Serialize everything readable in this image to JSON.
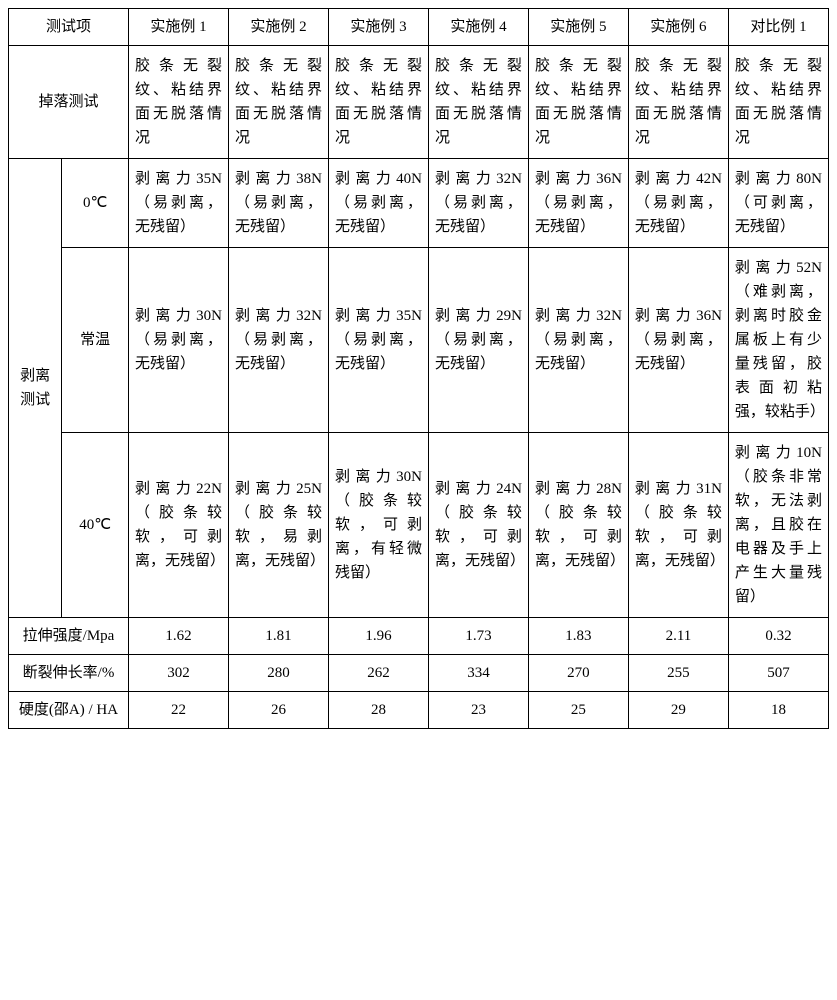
{
  "header": {
    "c0": "测试项",
    "c1": "实施例 1",
    "c2": "实施例 2",
    "c3": "实施例 3",
    "c4": "实施例 4",
    "c5": "实施例 5",
    "c6": "实施例 6",
    "c7": "对比例 1"
  },
  "drop": {
    "label": "掉落测试",
    "c1": "胶条无裂纹、粘结界面无脱落情况",
    "c2": "胶条无裂纹、粘结界面无脱落情况",
    "c3": "胶条无裂纹、粘结界面无脱落情况",
    "c4": "胶条无裂纹、粘结界面无脱落情况",
    "c5": "胶条无裂纹、粘结界面无脱落情况",
    "c6": "胶条无裂纹、粘结界面无脱落情况",
    "c7": "胶条无裂纹、粘结界面无脱落情况"
  },
  "peel": {
    "label": "剥离测试",
    "t0": {
      "label": "0℃",
      "c1": "剥离力35N（易剥离，无残留）",
      "c2": "剥离力38N（易剥离，无残留）",
      "c3": "剥离力40N（易剥离，无残留）",
      "c4": "剥离力32N（易剥离，无残留）",
      "c5": "剥离力36N（易剥离，无残留）",
      "c6": "剥离力42N（易剥离，无残留）",
      "c7": "剥离力80N（可剥离，无残留）"
    },
    "rt": {
      "label": "常温",
      "c1": "剥离力30N（易剥离，无残留）",
      "c2": "剥离力32N（易剥离，无残留）",
      "c3": "剥离力35N（易剥离，无残留）",
      "c4": "剥离力29N（易剥离，无残留）",
      "c5": "剥离力32N（易剥离，无残留）",
      "c6": "剥离力36N（易剥离，无残留）",
      "c7": "剥离力52N（难剥离，剥离时胶金属板上有少量残留，胶表面初粘强，较粘手）"
    },
    "t40": {
      "label": "40℃",
      "c1": "剥离力22N（胶条较软，可剥离，无残留）",
      "c2": "剥离力25N（胶条较软，易剥离，无残留）",
      "c3": "剥离力30N（胶条较软，可剥离，有轻微残留）",
      "c4": "剥离力24N（胶条较软，可剥离，无残留）",
      "c5": "剥离力28N（胶条较软，可剥离，无残留）",
      "c6": "剥离力31N（胶条较软，可剥离，无残留）",
      "c7": "剥离力10N（胶条非常软，无法剥离，且胶在电器及手上产生大量残留）"
    }
  },
  "tensile": {
    "label": "拉伸强度/Mpa",
    "c1": "1.62",
    "c2": "1.81",
    "c3": "1.96",
    "c4": "1.73",
    "c5": "1.83",
    "c6": "2.11",
    "c7": "0.32"
  },
  "elong": {
    "label": "断裂伸长率/%",
    "c1": "302",
    "c2": "280",
    "c3": "262",
    "c4": "334",
    "c5": "270",
    "c6": "255",
    "c7": "507"
  },
  "hard": {
    "label": "硬度(邵A) / HA",
    "c1": "22",
    "c2": "26",
    "c3": "28",
    "c4": "23",
    "c5": "25",
    "c6": "29",
    "c7": "18"
  }
}
